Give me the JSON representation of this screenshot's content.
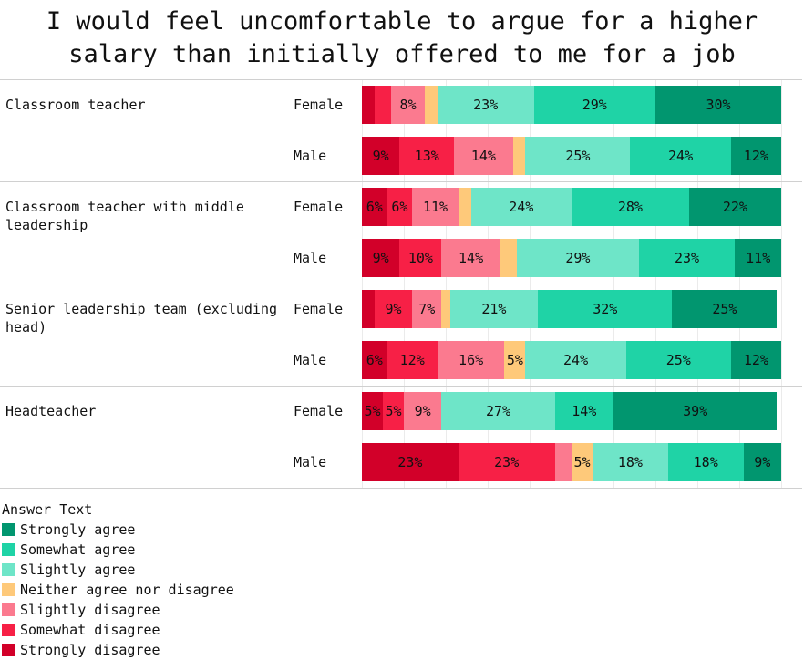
{
  "chart_data": {
    "type": "bar",
    "orientation": "horizontal-stacked-100",
    "title": "I would feel uncomfortable to argue for a higher\nsalary than initially offered to me for a job",
    "legend_title": "Answer Text",
    "legend_placement": "bottom-left",
    "series": [
      {
        "name": "Strongly disagree",
        "color": "#d20029"
      },
      {
        "name": "Somewhat disagree",
        "color": "#f72046"
      },
      {
        "name": "Slightly disagree",
        "color": "#fb7a8f"
      },
      {
        "name": "Neither agree nor disagree",
        "color": "#fec97a"
      },
      {
        "name": "Slightly agree",
        "color": "#6ee5c8"
      },
      {
        "name": "Somewhat agree",
        "color": "#1fd3a6"
      },
      {
        "name": "Strongly agree",
        "color": "#01966f"
      }
    ],
    "legend_order": [
      6,
      5,
      4,
      3,
      2,
      1,
      0
    ],
    "groups": [
      {
        "label": "Classroom teacher",
        "rows": [
          {
            "gender": "Female",
            "values": [
              3,
              4,
              8,
              3,
              23,
              29,
              30
            ],
            "labels": [
              "",
              "",
              "8%",
              "",
              "23%",
              "29%",
              "30%"
            ]
          },
          {
            "gender": "Male",
            "values": [
              9,
              13,
              14,
              3,
              25,
              24,
              12
            ],
            "labels": [
              "9%",
              "13%",
              "14%",
              "",
              "25%",
              "24%",
              "12%"
            ]
          }
        ]
      },
      {
        "label": "Classroom teacher with middle leadership",
        "rows": [
          {
            "gender": "Female",
            "values": [
              6,
              6,
              11,
              3,
              24,
              28,
              22
            ],
            "labels": [
              "6%",
              "6%",
              "11%",
              "",
              "24%",
              "28%",
              "22%"
            ]
          },
          {
            "gender": "Male",
            "values": [
              9,
              10,
              14,
              4,
              29,
              23,
              11
            ],
            "labels": [
              "9%",
              "10%",
              "14%",
              "",
              "29%",
              "23%",
              "11%"
            ]
          }
        ]
      },
      {
        "label": "Senior leadership team (excluding head)",
        "rows": [
          {
            "gender": "Female",
            "values": [
              3,
              9,
              7,
              2,
              21,
              32,
              25
            ],
            "labels": [
              "",
              "9%",
              "7%",
              "",
              "21%",
              "32%",
              "25%"
            ]
          },
          {
            "gender": "Male",
            "values": [
              6,
              12,
              16,
              5,
              24,
              25,
              12
            ],
            "labels": [
              "6%",
              "12%",
              "16%",
              "5%",
              "24%",
              "25%",
              "12%"
            ]
          }
        ]
      },
      {
        "label": "Headteacher",
        "rows": [
          {
            "gender": "Female",
            "values": [
              5,
              5,
              9,
              0,
              27,
              14,
              39
            ],
            "labels": [
              "5%",
              "5%",
              "9%",
              "",
              "27%",
              "14%",
              "39%"
            ]
          },
          {
            "gender": "Male",
            "values": [
              23,
              23,
              4,
              5,
              18,
              18,
              9
            ],
            "labels": [
              "23%",
              "23%",
              "",
              "5%",
              "18%",
              "18%",
              "9%"
            ]
          }
        ]
      }
    ],
    "xlim": [
      0,
      100
    ]
  }
}
